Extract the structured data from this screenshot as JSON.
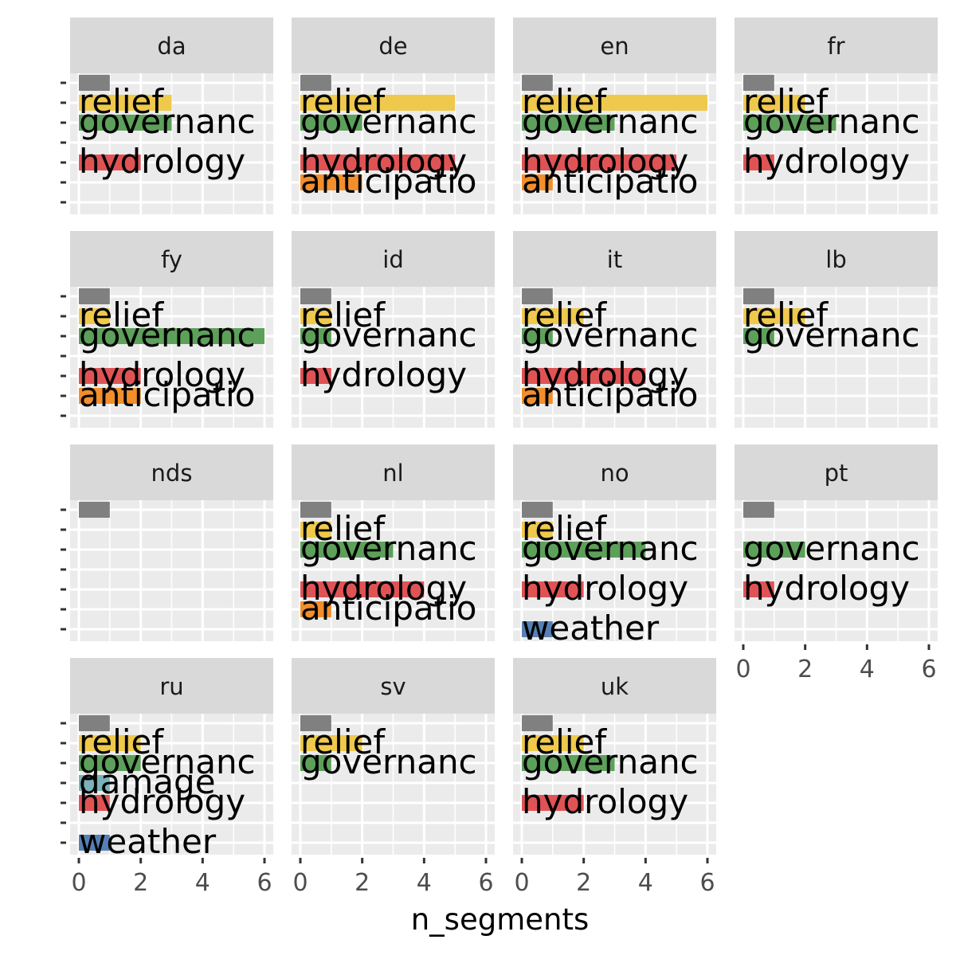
{
  "chart_data": {
    "type": "bar",
    "orientation": "horizontal",
    "facet_layout": "4x4",
    "xlabel": "n_segments",
    "ylabel": "",
    "xlim": [
      0,
      6
    ],
    "x_ticks": [
      0,
      2,
      4,
      6
    ],
    "grid": true,
    "legend": "none",
    "categories": [
      "(unlabeled)",
      "relief",
      "governance",
      "damage",
      "hydrology",
      "anticipation",
      "weather"
    ],
    "category_display": [
      "",
      "relief",
      "governanc",
      "damage",
      "hydrology",
      "anticipatio",
      "weather"
    ],
    "category_colors": {
      "(unlabeled)": "#808080",
      "relief": "#EFC94C",
      "governance": "#5DA05A",
      "damage": "#79B2B8",
      "hydrology": "#E05355",
      "anticipation": "#F28E2B",
      "weather": "#5680B5"
    },
    "panels": [
      {
        "label": "da",
        "values": {
          "(unlabeled)": 1,
          "relief": 3,
          "governance": 3,
          "hydrology": 2
        }
      },
      {
        "label": "de",
        "values": {
          "(unlabeled)": 1,
          "relief": 5,
          "governance": 2,
          "hydrology": 5,
          "anticipation": 2
        }
      },
      {
        "label": "en",
        "values": {
          "(unlabeled)": 1,
          "relief": 6,
          "governance": 3,
          "hydrology": 5,
          "anticipation": 1
        }
      },
      {
        "label": "fr",
        "values": {
          "(unlabeled)": 1,
          "relief": 2,
          "governance": 3,
          "hydrology": 1
        }
      },
      {
        "label": "fy",
        "values": {
          "(unlabeled)": 1,
          "relief": 1,
          "governance": 6,
          "hydrology": 2,
          "anticipation": 2
        }
      },
      {
        "label": "id",
        "values": {
          "(unlabeled)": 1,
          "relief": 1,
          "governance": 1,
          "hydrology": 1
        }
      },
      {
        "label": "it",
        "values": {
          "(unlabeled)": 1,
          "relief": 2,
          "governance": 1,
          "hydrology": 4,
          "anticipation": 1
        }
      },
      {
        "label": "lb",
        "values": {
          "(unlabeled)": 1,
          "relief": 2,
          "governance": 1
        }
      },
      {
        "label": "nds",
        "values": {
          "(unlabeled)": 1
        }
      },
      {
        "label": "nl",
        "values": {
          "(unlabeled)": 1,
          "relief": 1,
          "governance": 3,
          "hydrology": 4,
          "anticipation": 1
        }
      },
      {
        "label": "no",
        "values": {
          "(unlabeled)": 1,
          "relief": 1,
          "governance": 4,
          "hydrology": 2,
          "weather": 1
        }
      },
      {
        "label": "pt",
        "values": {
          "(unlabeled)": 1,
          "governance": 2,
          "hydrology": 1
        }
      },
      {
        "label": "ru",
        "values": {
          "(unlabeled)": 1,
          "relief": 2,
          "governance": 2,
          "damage": 1,
          "hydrology": 1,
          "weather": 1
        }
      },
      {
        "label": "sv",
        "values": {
          "(unlabeled)": 1,
          "relief": 2,
          "governance": 1
        }
      },
      {
        "label": "uk",
        "values": {
          "(unlabeled)": 1,
          "relief": 2,
          "governance": 3,
          "hydrology": 2
        }
      }
    ]
  }
}
